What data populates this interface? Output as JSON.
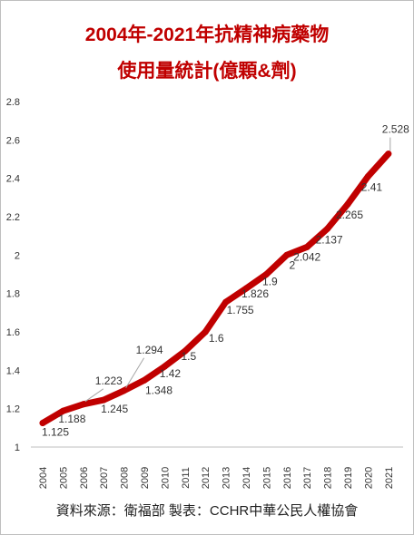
{
  "chart_data": {
    "type": "line",
    "title": "2004年-2021年抗精神病藥物",
    "subtitle": "使用量統計(億顆&劑)",
    "xlabel": "",
    "ylabel": "",
    "categories": [
      "2004",
      "2005",
      "2006",
      "2007",
      "2008",
      "2009",
      "2010",
      "2011",
      "2012",
      "2013",
      "2014",
      "2015",
      "2016",
      "2017",
      "2018",
      "2019",
      "2020",
      "2021"
    ],
    "series": [
      {
        "values": [
          1.125,
          1.188,
          1.223,
          1.245,
          1.294,
          1.348,
          1.42,
          1.5,
          1.6,
          1.755,
          1.826,
          1.9,
          2,
          2.042,
          2.137,
          2.265,
          2.41,
          2.528
        ],
        "labels": [
          "1.125",
          "1.188",
          "1.223",
          "1.245",
          "1.294",
          "1.348",
          "1.42",
          "1.5",
          "1.6",
          "1.755",
          "1.826",
          "1.9",
          "2",
          "2.042",
          "2.137",
          "2.265",
          "2.41",
          "2.528"
        ],
        "color": "#c00000"
      }
    ],
    "yticks": [
      "1",
      "1.2",
      "1.4",
      "1.6",
      "1.8",
      "2",
      "2.2",
      "2.4",
      "2.6",
      "2.8"
    ],
    "ylim": [
      1,
      2.8
    ],
    "grid": false,
    "legend": "none"
  },
  "footer": "資料來源：衛福部  製表：CCHR中華公民人權協會"
}
